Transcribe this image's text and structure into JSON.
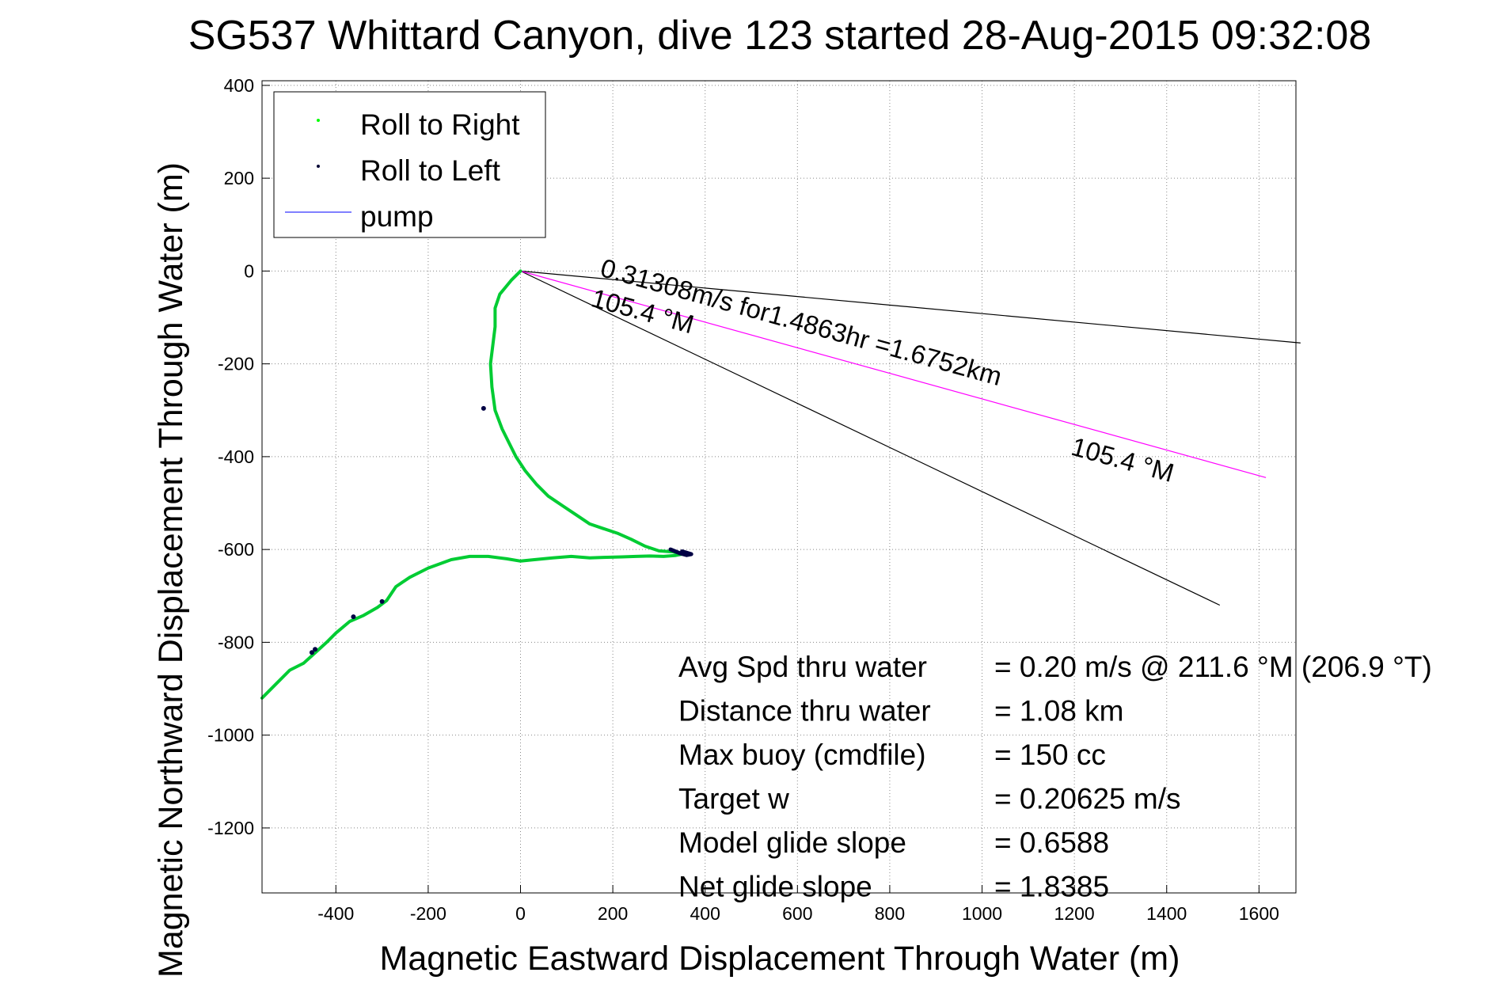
{
  "chart_data": {
    "type": "line",
    "title": "SG537 Whittard Canyon, dive 123 started 28-Aug-2015 09:32:08",
    "xlabel": "Magnetic Eastward Displacement Through Water (m)",
    "ylabel": "Magnetic Northward Displacement Through Water (m)",
    "xlim": [
      -560,
      1680
    ],
    "ylim": [
      -1340,
      410
    ],
    "xticks": [
      -400,
      -200,
      0,
      200,
      400,
      600,
      800,
      1000,
      1200,
      1400,
      1600
    ],
    "yticks": [
      400,
      200,
      0,
      -200,
      -400,
      -600,
      -800,
      -1000,
      -1200
    ],
    "grid": true,
    "legend": {
      "placement": "top-left",
      "entries": [
        {
          "label": "Roll to Right",
          "color": "#00ff00",
          "marker": "dot"
        },
        {
          "label": "Roll to Left",
          "color": "#000033",
          "marker": "dot"
        },
        {
          "label": "pump",
          "color": "#0000ff",
          "marker": "line"
        }
      ]
    },
    "series": [
      {
        "name": "Roll to Right",
        "color": "#00cc33",
        "x": [
          0,
          -20,
          -45,
          -55,
          -55,
          -60,
          -65,
          -62,
          -55,
          -40,
          -25,
          -10,
          10,
          35,
          60,
          90,
          120,
          150,
          180,
          210,
          240,
          270,
          300,
          330,
          350,
          335,
          310,
          280,
          250,
          220,
          180,
          150,
          110,
          70,
          30,
          0,
          -30,
          -70,
          -110,
          -150,
          -200,
          -240,
          -270,
          -290,
          -310,
          -340,
          -370,
          -400,
          -420,
          -440,
          -470,
          -500,
          -530,
          -560
        ],
        "y": [
          0,
          -20,
          -50,
          -80,
          -120,
          -160,
          -200,
          -250,
          -300,
          -340,
          -370,
          -400,
          -430,
          -460,
          -485,
          -505,
          -525,
          -545,
          -555,
          -565,
          -578,
          -593,
          -603,
          -605,
          -610,
          -613,
          -615,
          -614,
          -615,
          -616,
          -617,
          -618,
          -615,
          -618,
          -622,
          -625,
          -620,
          -615,
          -615,
          -622,
          -640,
          -660,
          -680,
          -710,
          -725,
          -742,
          -755,
          -780,
          -800,
          -818,
          -845,
          -860,
          -890,
          -920
        ]
      },
      {
        "name": "Roll to Left",
        "color": "#000044",
        "x": [
          325,
          345,
          360,
          370,
          350
        ],
        "y": [
          -600,
          -608,
          -612,
          -610,
          -604
        ]
      }
    ],
    "reference_lines": [
      {
        "name": "heading-line-upper",
        "color": "#000000",
        "x": [
          0,
          1690
        ],
        "y": [
          0,
          -155
        ]
      },
      {
        "name": "heading-line-lower",
        "color": "#000000",
        "x": [
          0,
          1515
        ],
        "y": [
          0,
          -720
        ]
      },
      {
        "name": "heading-line-magenta",
        "color": "#ff00ff",
        "x": [
          0,
          1615
        ],
        "y": [
          0,
          -445
        ]
      }
    ],
    "annotations": [
      {
        "text": "0.31308m/s for1.4863hr =1.6752km",
        "x": 170,
        "y": -10,
        "rotation": 15.4
      },
      {
        "text": "105.4 °M",
        "x": 150,
        "y": -75,
        "rotation": 15.4
      },
      {
        "text": "105.4 °M",
        "x": 1190,
        "y": -395,
        "rotation": 15.4
      }
    ],
    "stats": [
      {
        "label": "Avg Spd thru water",
        "value": "=  0.20 m/s @ 211.6  °M (206.9 °T)"
      },
      {
        "label": "Distance thru water",
        "value": "=  1.08 km"
      },
      {
        "label": "Max buoy (cmdfile)",
        "value": "= 150 cc"
      },
      {
        "label": "Target w",
        "value": "= 0.20625 m/s"
      },
      {
        "label": "Model glide slope",
        "value": "= 0.6588"
      },
      {
        "label": "Net glide slope",
        "value": "= 1.8385"
      }
    ]
  }
}
